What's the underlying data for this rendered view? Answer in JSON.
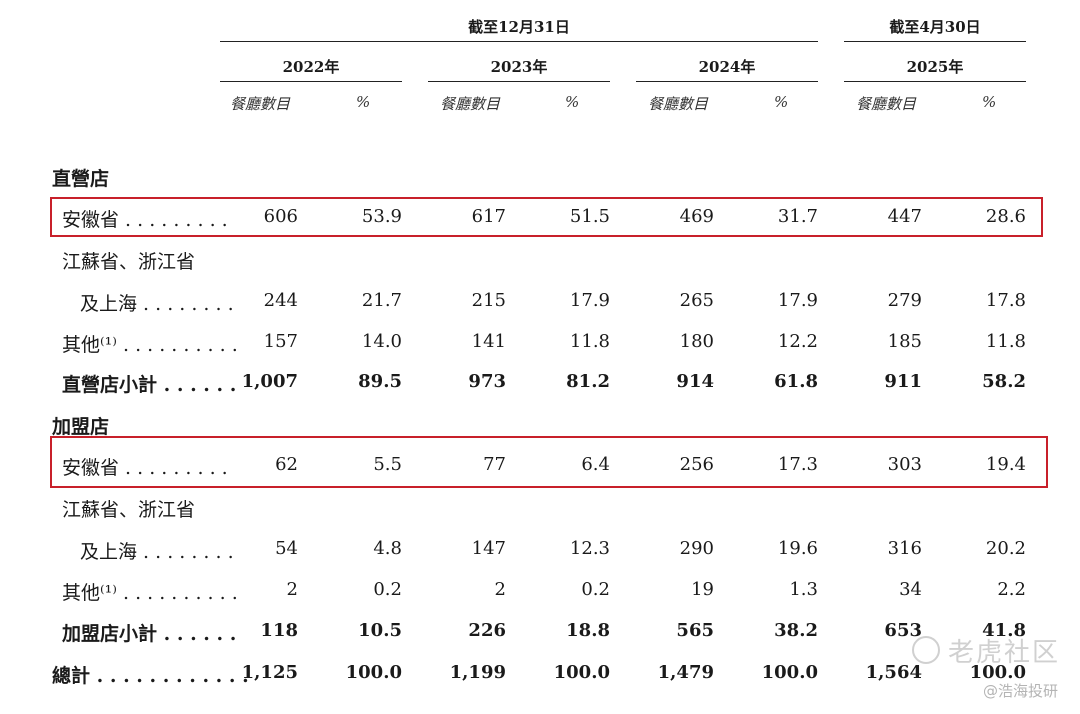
{
  "header": {
    "dec31": "截至12月31日",
    "apr30": "截至4月30日",
    "years": [
      "2022年",
      "2023年",
      "2024年",
      "2025年"
    ],
    "sub_count": "餐廳數目",
    "sub_pct": "%"
  },
  "sections": {
    "direct": "直營店",
    "franchise": "加盟店"
  },
  "rows": [
    {
      "label": "安徽省 . . . . . . . . .",
      "values": [
        "606",
        "53.9",
        "617",
        "51.5",
        "469",
        "31.7",
        "447",
        "28.6"
      ]
    },
    {
      "label": "江蘇省、浙江省",
      "values": []
    },
    {
      "label": "及上海 . . . . . . . .",
      "values": [
        "244",
        "21.7",
        "215",
        "17.9",
        "265",
        "17.9",
        "279",
        "17.8"
      ]
    },
    {
      "label": "其他⁽¹⁾ . . . . . . . . . .",
      "values": [
        "157",
        "14.0",
        "141",
        "11.8",
        "180",
        "12.2",
        "185",
        "11.8"
      ]
    },
    {
      "label": "直營店小計 . . . . . .",
      "values": [
        "1,007",
        "89.5",
        "973",
        "81.2",
        "914",
        "61.8",
        "911",
        "58.2"
      ]
    },
    {
      "label": "安徽省 . . . . . . . . .",
      "values": [
        "62",
        "5.5",
        "77",
        "6.4",
        "256",
        "17.3",
        "303",
        "19.4"
      ]
    },
    {
      "label": "江蘇省、浙江省",
      "values": []
    },
    {
      "label": "及上海 . . . . . . . .",
      "values": [
        "54",
        "4.8",
        "147",
        "12.3",
        "290",
        "19.6",
        "316",
        "20.2"
      ]
    },
    {
      "label": "其他⁽¹⁾ . . . . . . . . . .",
      "values": [
        "2",
        "0.2",
        "2",
        "0.2",
        "19",
        "1.3",
        "34",
        "2.2"
      ]
    },
    {
      "label": "加盟店小計 . . . . . .",
      "values": [
        "118",
        "10.5",
        "226",
        "18.8",
        "565",
        "38.2",
        "653",
        "41.8"
      ]
    },
    {
      "label": "總計 . . . . . . . . . . . .",
      "values": [
        "1,125",
        "100.0",
        "1,199",
        "100.0",
        "1,479",
        "100.0",
        "1,564",
        "100.0"
      ]
    }
  ],
  "watermark": {
    "brand": "老虎社区",
    "author": "@浩海投研"
  }
}
